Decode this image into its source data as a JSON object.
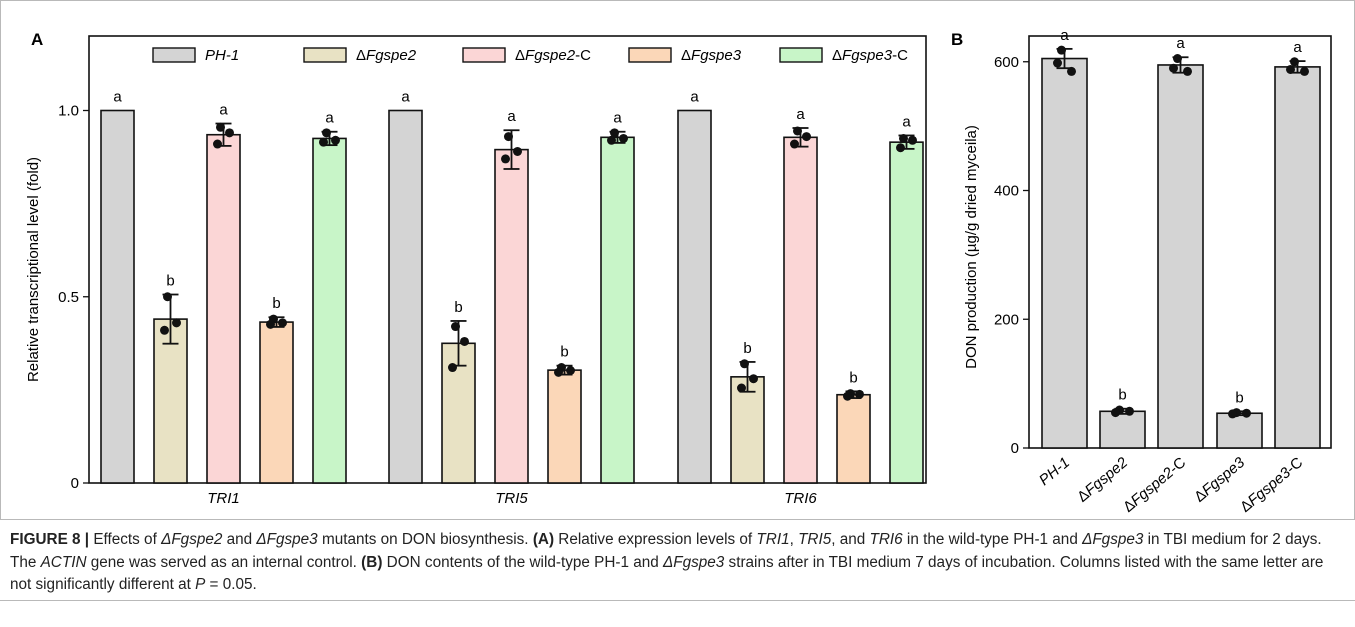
{
  "figure": {
    "panel_a_label": "A",
    "panel_b_label": "B",
    "caption": {
      "label": "FIGURE 8 |",
      "t1": " Effects of ",
      "m1": "ΔFgspe2",
      "t2": " and ",
      "m2": "ΔFgspe3",
      "t3": " mutants on DON biosynthesis. ",
      "a_tag": "(A)",
      "t4": " Relative expression levels of ",
      "g1": "TRI1",
      "t5": ", ",
      "g2": "TRI5",
      "t6": ", and ",
      "g3": "TRI6",
      "t7": " in the wild-type PH-1 and ",
      "m3": "ΔFgspe3",
      "t8": " in TBI medium for 2 days. The ",
      "g4": "ACTIN",
      "t9": " gene was served as an internal control. ",
      "b_tag": "(B)",
      "t10": " DON contents of the wild-type PH-1 and ",
      "m4": "ΔFgspe3",
      "t11": " strains after in TBI medium 7 days of incubation. Columns listed with the same letter are not significantly different at ",
      "p": "P",
      "t12": " = 0.05."
    }
  },
  "chart_data": [
    {
      "panel": "A",
      "type": "bar",
      "ylabel": "Relative transcriptional level (fold)",
      "ylim": [
        0,
        1.2
      ],
      "yticks": [
        0,
        0.5,
        1.0
      ],
      "ytick_labels": [
        "0",
        "0.5",
        "1.0"
      ],
      "categories": [
        "TRI1",
        "TRI5",
        "TRI6"
      ],
      "grid": false,
      "legend_position": "top",
      "series": [
        {
          "name": "PH-1",
          "color": "#d4d4d4",
          "values": [
            1.0,
            1.0,
            1.0
          ],
          "err": [
            0,
            0,
            0
          ],
          "letters": [
            "a",
            "a",
            "a"
          ],
          "points": [
            [],
            [],
            []
          ]
        },
        {
          "name": "ΔFgspe2",
          "color": "#e8e2c4",
          "values": [
            0.44,
            0.375,
            0.285
          ],
          "err": [
            0.066,
            0.06,
            0.04
          ],
          "letters": [
            "b",
            "b",
            "b"
          ],
          "points": [
            [
              0.5,
              0.41,
              0.43
            ],
            [
              0.42,
              0.31,
              0.38
            ],
            [
              0.32,
              0.255,
              0.28
            ]
          ]
        },
        {
          "name": "ΔFgspe2-C",
          "color": "#fbd6d6",
          "values": [
            0.935,
            0.895,
            0.928
          ],
          "err": [
            0.03,
            0.052,
            0.025
          ],
          "letters": [
            "a",
            "a",
            "a"
          ],
          "points": [
            [
              0.955,
              0.91,
              0.94
            ],
            [
              0.93,
              0.87,
              0.89
            ],
            [
              0.945,
              0.91,
              0.93
            ]
          ]
        },
        {
          "name": "ΔFgspe3",
          "color": "#fbd7b8",
          "values": [
            0.432,
            0.303,
            0.237
          ],
          "err": [
            0.013,
            0.012,
            0.009
          ],
          "letters": [
            "b",
            "b",
            "b"
          ],
          "points": [
            [
              0.44,
              0.426,
              0.43
            ],
            [
              0.31,
              0.297,
              0.302
            ],
            [
              0.24,
              0.233,
              0.238
            ]
          ]
        },
        {
          "name": "ΔFgspe3-C",
          "color": "#c8f5c8",
          "values": [
            0.925,
            0.928,
            0.915
          ],
          "err": [
            0.018,
            0.015,
            0.018
          ],
          "letters": [
            "a",
            "a",
            "a"
          ],
          "points": [
            [
              0.94,
              0.915,
              0.92
            ],
            [
              0.94,
              0.92,
              0.925
            ],
            [
              0.925,
              0.9,
              0.92
            ]
          ]
        }
      ]
    },
    {
      "panel": "B",
      "type": "bar",
      "ylabel": "DON production (µg/g dried myceila)",
      "ylim": [
        0,
        640
      ],
      "yticks": [
        0,
        200,
        400,
        600
      ],
      "ytick_labels": [
        "0",
        "200",
        "400",
        "600"
      ],
      "categories": [
        "PH-1",
        "ΔFgspe2",
        "ΔFgspe2-C",
        "ΔFgspe3",
        "ΔFgspe3-C"
      ],
      "values": [
        605,
        57,
        595,
        54,
        592
      ],
      "err": [
        15,
        4,
        12,
        3,
        9
      ],
      "letters": [
        "a",
        "b",
        "a",
        "b",
        "a"
      ],
      "points": [
        [
          618,
          598,
          585
        ],
        [
          59,
          55,
          57
        ],
        [
          605,
          590,
          585
        ],
        [
          55,
          53,
          54
        ],
        [
          600,
          588,
          585
        ]
      ],
      "bar_color": "#d4d4d4",
      "grid": false
    }
  ]
}
